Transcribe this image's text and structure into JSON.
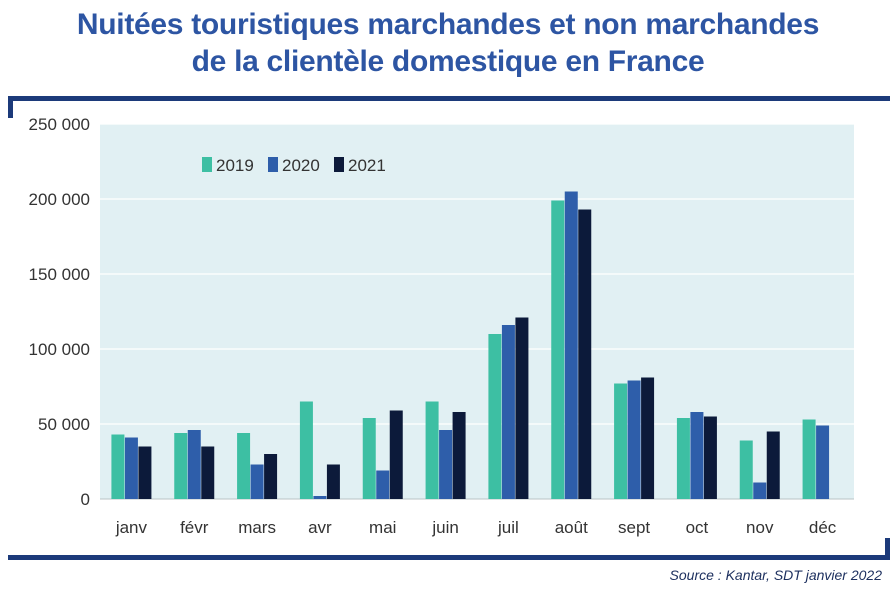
{
  "header": {
    "title_line1": "Nuitées touristiques marchandes et non marchandes",
    "title_line2": "de la clientèle domestique en France"
  },
  "footer": {
    "source": "Source :  Kantar, SDT janvier 2022"
  },
  "colors": {
    "title": "#2d55a3",
    "frame": "#1c3a7a",
    "plot_background": "#e1f0f3",
    "series": [
      "#3dbfa3",
      "#2e5eaa",
      "#0c1a3a"
    ]
  },
  "chart_data": {
    "type": "bar",
    "categories": [
      "janv",
      "févr",
      "mars",
      "avr",
      "mai",
      "juin",
      "juil",
      "août",
      "sept",
      "oct",
      "nov",
      "déc"
    ],
    "series": [
      {
        "name": "2019",
        "values": [
          43000,
          44000,
          44000,
          65000,
          54000,
          65000,
          110000,
          199000,
          77000,
          54000,
          39000,
          53000
        ]
      },
      {
        "name": "2020",
        "values": [
          41000,
          46000,
          23000,
          2000,
          19000,
          46000,
          116000,
          205000,
          79000,
          58000,
          11000,
          49000
        ]
      },
      {
        "name": "2021",
        "values": [
          35000,
          35000,
          30000,
          23000,
          59000,
          58000,
          121000,
          193000,
          81000,
          55000,
          45000,
          null
        ]
      }
    ],
    "ylim": [
      0,
      250000
    ],
    "yticks": [
      0,
      50000,
      100000,
      150000,
      200000,
      250000
    ],
    "ytick_labels": [
      "0",
      "50 000",
      "100 000",
      "150 000",
      "200 000",
      "250 000"
    ],
    "grid": true,
    "legend_position": "top-left"
  }
}
